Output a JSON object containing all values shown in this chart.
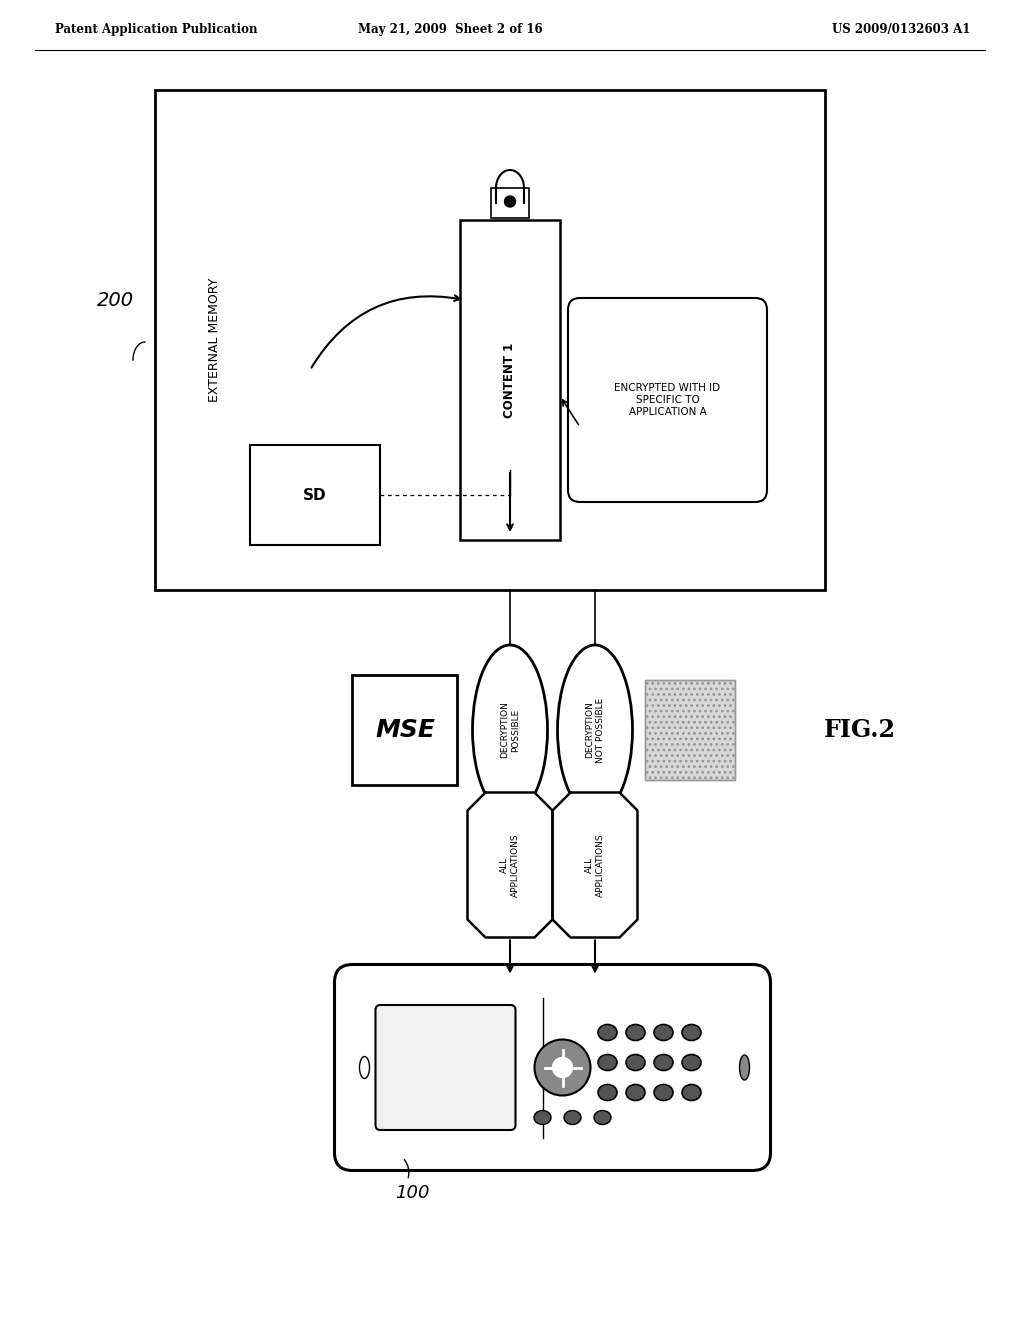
{
  "bg_color": "#ffffff",
  "header_left": "Patent Application Publication",
  "header_mid": "May 21, 2009  Sheet 2 of 16",
  "header_right": "US 2009/0132603 A1",
  "fig_label": "FIG.2",
  "label_200": "200",
  "label_100": "100",
  "ext_mem_label": "EXTERNAL MEMORY",
  "content1_label": "CONTENT 1",
  "sd_label": "SD",
  "encrypted_label": "ENCRYPTED WITH ID\nSPECIFIC TO\nAPPLICATION A",
  "decryption_possible": "DECRYPTION\nPOSSIBLE",
  "decryption_not_possible": "DECRYPTION\nNOT POSSIBLE",
  "all_apps_left": "ALL\nAPPLICATIONS",
  "all_apps_right": "ALL\nAPPLICATIONS",
  "page_width": 10.24,
  "page_height": 13.2
}
